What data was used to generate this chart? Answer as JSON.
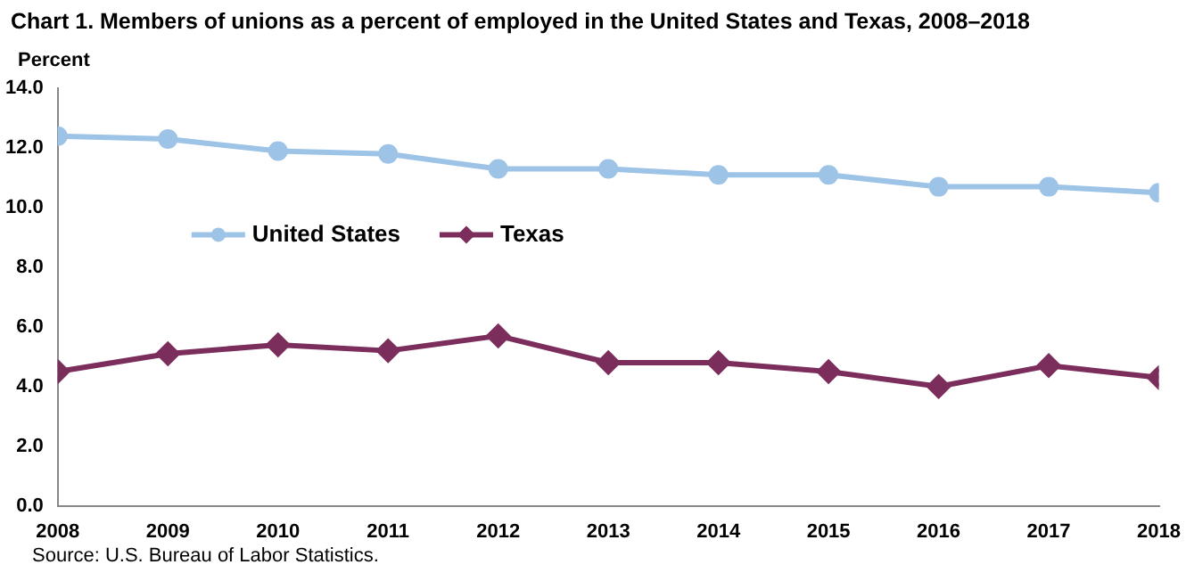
{
  "chart_data": {
    "type": "line",
    "title": "Chart 1. Members of unions as a percent of employed in the United States and Texas, 2008–2018",
    "ylabel": "Percent",
    "annotations": [
      "Source: U.S. Bureau of Labor Statistics."
    ],
    "x": [
      2008,
      2009,
      2010,
      2011,
      2012,
      2013,
      2014,
      2015,
      2016,
      2017,
      2018
    ],
    "xlim": [
      2008,
      2018
    ],
    "xticks": [
      2008,
      2009,
      2010,
      2011,
      2012,
      2013,
      2014,
      2015,
      2016,
      2017,
      2018
    ],
    "ylim": [
      0,
      14
    ],
    "yticks": [
      {
        "value": 0,
        "label": "0.0"
      },
      {
        "value": 2,
        "label": "2.0"
      },
      {
        "value": 4,
        "label": "4.0"
      },
      {
        "value": 6,
        "label": "6.0"
      },
      {
        "value": 8,
        "label": "8.0"
      },
      {
        "value": 10,
        "label": "10.0"
      },
      {
        "value": 12,
        "label": "12.0"
      },
      {
        "value": 14,
        "label": "14.0"
      }
    ],
    "grid": false,
    "legend": "left",
    "line_style": "solid",
    "series": [
      {
        "name": "United States",
        "color": "#9dc3e6",
        "marker": "circle",
        "values": [
          12.4,
          12.3,
          11.9,
          11.8,
          11.3,
          11.3,
          11.1,
          11.1,
          10.7,
          10.7,
          10.5
        ]
      },
      {
        "name": "Texas",
        "color": "#7b2d5c",
        "marker": "diamond",
        "values": [
          4.5,
          5.1,
          5.4,
          5.2,
          5.7,
          4.8,
          4.8,
          4.5,
          4.0,
          4.7,
          4.3
        ]
      }
    ]
  }
}
